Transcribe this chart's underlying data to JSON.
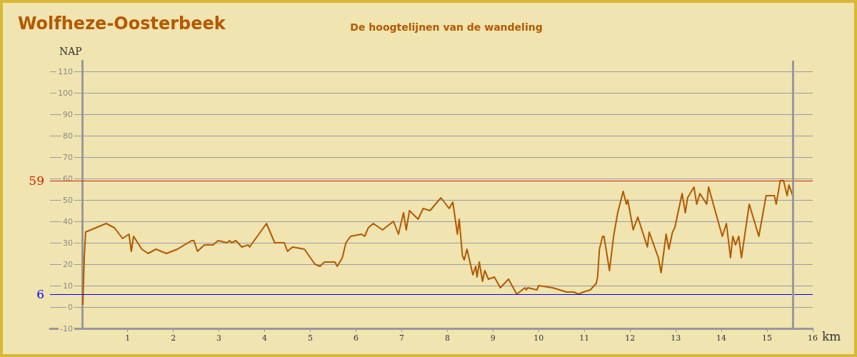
{
  "chart_data": {
    "type": "line",
    "title": "Wolfheze-Oosterbeek",
    "subtitle": "De hoogtelijnen van de wandeling",
    "xlabel": "km",
    "ylabel": "NAP",
    "x": [
      0.02,
      0.03,
      0.05,
      0.08,
      0.53,
      0.71,
      0.89,
      1.03,
      1.08,
      1.13,
      1.31,
      1.45,
      1.62,
      1.85,
      2.09,
      2.4,
      2.45,
      2.53,
      2.68,
      2.87,
      2.98,
      3.18,
      3.23,
      3.28,
      3.37,
      3.5,
      3.64,
      3.67,
      4.04,
      4.22,
      4.43,
      4.5,
      4.61,
      4.87,
      5.1,
      5.21,
      5.31,
      5.54,
      5.59,
      5.7,
      5.78,
      5.88,
      6.12,
      6.19,
      6.27,
      6.38,
      6.58,
      6.82,
      6.93,
      7.04,
      7.1,
      7.17,
      7.36,
      7.47,
      7.62,
      7.86,
      8.04,
      8.12,
      8.22,
      8.26,
      8.33,
      8.37,
      8.43,
      8.56,
      8.62,
      8.65,
      8.7,
      8.77,
      8.82,
      8.9,
      9.03,
      9.16,
      9.34,
      9.52,
      9.7,
      9.73,
      9.76,
      9.96,
      10.0,
      10.3,
      10.46,
      10.61,
      10.77,
      10.87,
      10.98,
      11.13,
      11.26,
      11.29,
      11.33,
      11.4,
      11.43,
      11.55,
      11.64,
      11.73,
      11.85,
      11.92,
      11.95,
      12.07,
      12.17,
      12.38,
      12.42,
      12.62,
      12.68,
      12.79,
      12.85,
      12.93,
      12.98,
      13.14,
      13.21,
      13.26,
      13.4,
      13.46,
      13.53,
      13.68,
      13.72,
      14.02,
      14.11,
      14.2,
      14.25,
      14.31,
      14.38,
      14.44,
      14.61,
      14.82,
      14.98,
      15.16,
      15.2,
      15.29,
      15.36,
      15.44,
      15.48,
      15.56
    ],
    "series": [
      {
        "color": "#b35900",
        "values": [
          1,
          9,
          23,
          35,
          39,
          37,
          32,
          34,
          26,
          33,
          27,
          25,
          27,
          25,
          27,
          31,
          31,
          26,
          29,
          29,
          31,
          30,
          31,
          30,
          31,
          28,
          29,
          28,
          39,
          30,
          30,
          26,
          28,
          27,
          20,
          19,
          21,
          21,
          19,
          23,
          30,
          33,
          34,
          33,
          37,
          39,
          36,
          40,
          34,
          44,
          36,
          45,
          41,
          46,
          45,
          51,
          46,
          49,
          34,
          41,
          24,
          22,
          27,
          15,
          19,
          14,
          21,
          12,
          17,
          13,
          14,
          9,
          13,
          6,
          9,
          8,
          9,
          8,
          10,
          9,
          8,
          7,
          7,
          6,
          7,
          8,
          11,
          14,
          27,
          33,
          33,
          17,
          33,
          44,
          54,
          48,
          50,
          36,
          42,
          28,
          35,
          23,
          16,
          34,
          27,
          35,
          37,
          53,
          44,
          51,
          56,
          48,
          53,
          48,
          56,
          33,
          39,
          23,
          33,
          29,
          33,
          23,
          48,
          33,
          52,
          52,
          48,
          59,
          59,
          52,
          57,
          52
        ]
      }
    ],
    "xlim": [
      -0.7,
      16
    ],
    "xticks": [
      1,
      2,
      3,
      4,
      5,
      6,
      7,
      8,
      9,
      10,
      11,
      12,
      13,
      14,
      15,
      16
    ],
    "ylim": [
      -10,
      115
    ],
    "yticks": [
      -10,
      0,
      10,
      20,
      30,
      40,
      50,
      60,
      70,
      80,
      90,
      100,
      110
    ],
    "grid": "y",
    "marker": "none",
    "line_style": "solid",
    "ref_lines": [
      {
        "axis": "y",
        "value": 59,
        "label": "59",
        "color": "#cc2200"
      },
      {
        "axis": "y",
        "value": 6,
        "label": "6",
        "color": "#0000ff"
      },
      {
        "axis": "x",
        "value": 15.57,
        "label": null,
        "color": "#999999"
      }
    ]
  }
}
